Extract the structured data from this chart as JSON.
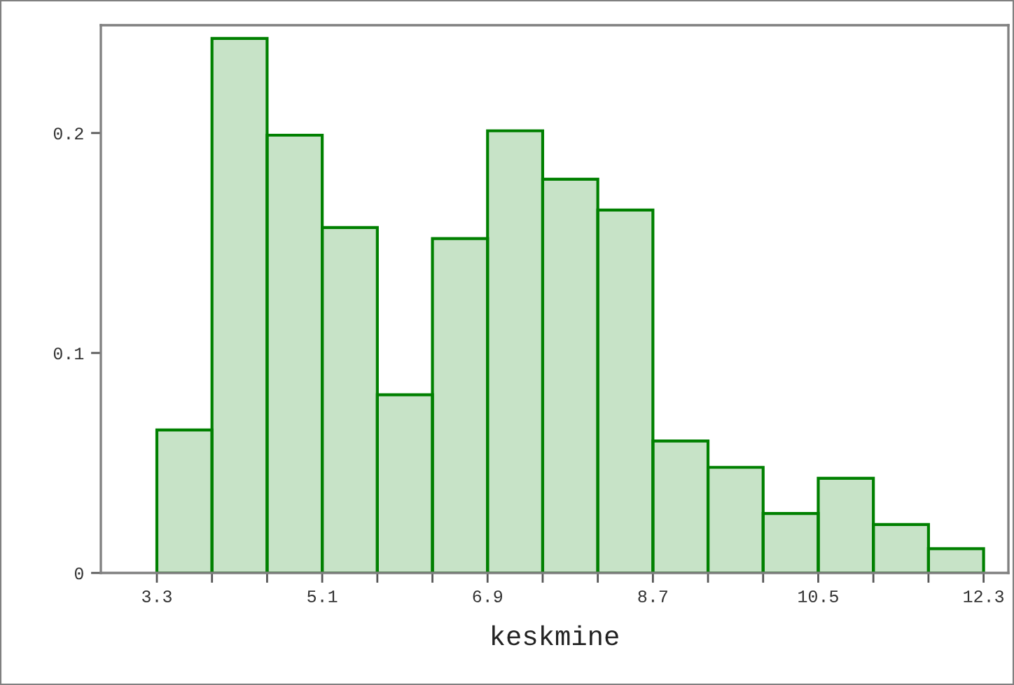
{
  "chart_data": {
    "type": "histogram",
    "xlabel": "keskmine",
    "bins": [
      3.3,
      3.9,
      4.5,
      5.1,
      5.7,
      6.3,
      6.9,
      7.5,
      8.1,
      8.7,
      9.3,
      9.9,
      10.5,
      11.1,
      11.7,
      12.3
    ],
    "values": [
      0.065,
      0.243,
      0.199,
      0.157,
      0.081,
      0.152,
      0.201,
      0.179,
      0.165,
      0.06,
      0.048,
      0.027,
      0.043,
      0.022,
      0.011
    ],
    "color": "#008000",
    "xlim": [
      2.69,
      12.57
    ],
    "ylim": [
      0,
      0.249
    ],
    "xticks": [
      3.3,
      {
        "value": 3.9,
        "label": null
      },
      {
        "value": 4.5,
        "label": null
      },
      5.1,
      {
        "value": 5.7,
        "label": null
      },
      {
        "value": 6.3,
        "label": null
      },
      6.9,
      {
        "value": 7.5,
        "label": null
      },
      {
        "value": 8.1,
        "label": null
      },
      8.7,
      {
        "value": 9.3,
        "label": null
      },
      {
        "value": 9.9,
        "label": null
      },
      10.5,
      {
        "value": 11.1,
        "label": null
      },
      {
        "value": 11.7,
        "label": null
      },
      12.3
    ],
    "yticks": [
      {
        "value": 0,
        "label": "0"
      },
      0.1,
      0.2
    ],
    "grid": false
  }
}
